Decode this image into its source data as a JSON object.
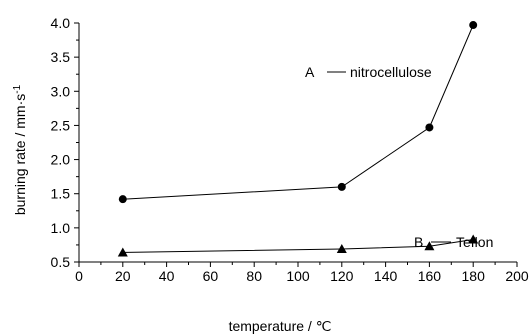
{
  "chart_data": {
    "type": "line",
    "xlabel": "temperature / ℃",
    "ylabel": "burning rate / mm·s",
    "ylabel_superscript": "-1",
    "xlim": [
      0,
      200
    ],
    "ylim": [
      0.5,
      4.0
    ],
    "x_ticks": [
      "0",
      "20",
      "40",
      "60",
      "80",
      "100",
      "120",
      "140",
      "160",
      "180",
      "200"
    ],
    "y_ticks": [
      "0.5",
      "1.0",
      "1.5",
      "2.0",
      "2.5",
      "3.0",
      "3.5",
      "4.0"
    ],
    "grid": false,
    "legend": "inline annotations",
    "series": [
      {
        "name": "A—nitrocellulose",
        "label_letter": "A",
        "label_name": "nitrocellulose",
        "marker": "circle",
        "x": [
          20,
          120,
          160,
          180
        ],
        "y": [
          1.42,
          1.6,
          2.47,
          3.97
        ]
      },
      {
        "name": "B—Teflon",
        "label_letter": "B",
        "label_name": "Teflon",
        "marker": "triangle",
        "x": [
          20,
          120,
          160,
          180
        ],
        "y": [
          0.64,
          0.69,
          0.73,
          0.83
        ]
      }
    ]
  }
}
